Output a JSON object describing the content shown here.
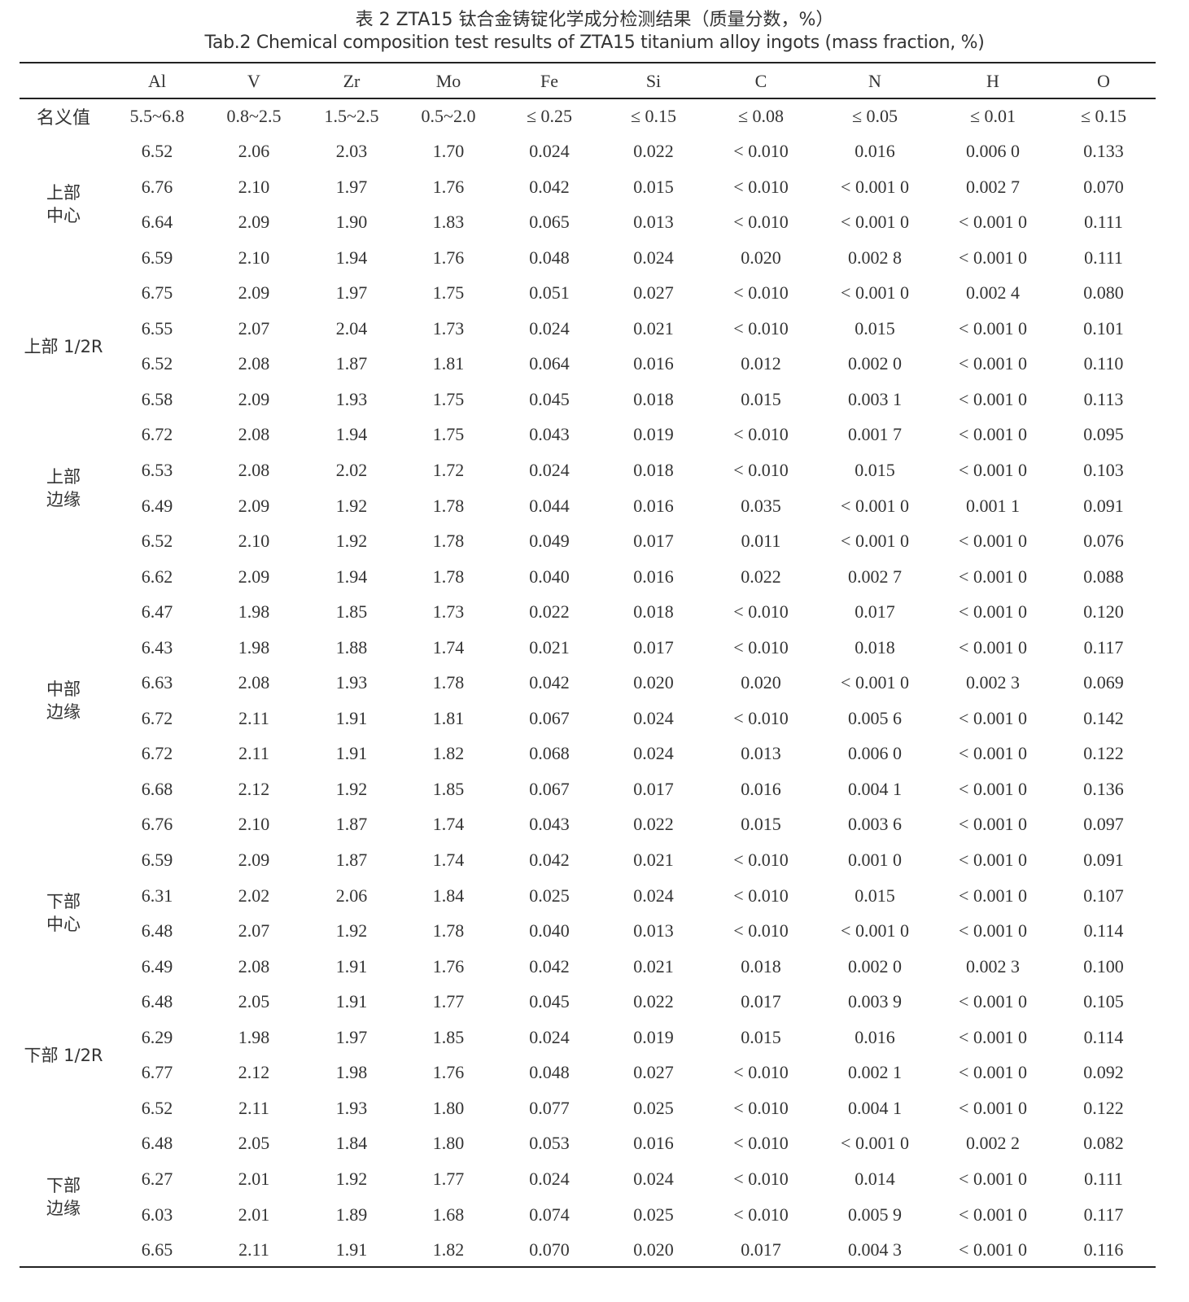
{
  "title_cn": "表 2 ZTA15 钛合金铸锭化学成分检测结果（质量分数，%）",
  "title_en": "Tab.2 Chemical composition test results of ZTA15 titanium alloy ingots (mass fraction, %)",
  "columns": [
    "Al",
    "V",
    "Zr",
    "Mo",
    "Fe",
    "Si",
    "C",
    "N",
    "H",
    "O"
  ],
  "nominal": {
    "label": "名义值",
    "values": [
      "5.5~6.8",
      "0.8~2.5",
      "1.5~2.5",
      "0.5~2.0",
      "≤ 0.25",
      "≤ 0.15",
      "≤ 0.08",
      "≤ 0.05",
      "≤ 0.01",
      "≤ 0.15"
    ]
  },
  "groups": [
    {
      "label": [
        "上部",
        "中心"
      ],
      "rows": [
        [
          "6.52",
          "2.06",
          "2.03",
          "1.70",
          "0.024",
          "0.022",
          "< 0.010",
          "0.016",
          "0.006 0",
          "0.133"
        ],
        [
          "6.76",
          "2.10",
          "1.97",
          "1.76",
          "0.042",
          "0.015",
          "< 0.010",
          "< 0.001 0",
          "0.002 7",
          "0.070"
        ],
        [
          "6.64",
          "2.09",
          "1.90",
          "1.83",
          "0.065",
          "0.013",
          "< 0.010",
          "< 0.001 0",
          "< 0.001 0",
          "0.111"
        ],
        [
          "6.59",
          "2.10",
          "1.94",
          "1.76",
          "0.048",
          "0.024",
          "0.020",
          "0.002 8",
          "< 0.001 0",
          "0.111"
        ]
      ]
    },
    {
      "label": [
        "上部 1/2R"
      ],
      "rows": [
        [
          "6.75",
          "2.09",
          "1.97",
          "1.75",
          "0.051",
          "0.027",
          "< 0.010",
          "< 0.001 0",
          "0.002 4",
          "0.080"
        ],
        [
          "6.55",
          "2.07",
          "2.04",
          "1.73",
          "0.024",
          "0.021",
          "< 0.010",
          "0.015",
          "< 0.001 0",
          "0.101"
        ],
        [
          "6.52",
          "2.08",
          "1.87",
          "1.81",
          "0.064",
          "0.016",
          "0.012",
          "0.002 0",
          "< 0.001 0",
          "0.110"
        ],
        [
          "6.58",
          "2.09",
          "1.93",
          "1.75",
          "0.045",
          "0.018",
          "0.015",
          "0.003 1",
          "< 0.001 0",
          "0.113"
        ]
      ]
    },
    {
      "label": [
        "上部",
        "边缘"
      ],
      "rows": [
        [
          "6.72",
          "2.08",
          "1.94",
          "1.75",
          "0.043",
          "0.019",
          "< 0.010",
          "0.001 7",
          "< 0.001 0",
          "0.095"
        ],
        [
          "6.53",
          "2.08",
          "2.02",
          "1.72",
          "0.024",
          "0.018",
          "< 0.010",
          "0.015",
          "< 0.001 0",
          "0.103"
        ],
        [
          "6.49",
          "2.09",
          "1.92",
          "1.78",
          "0.044",
          "0.016",
          "0.035",
          "< 0.001 0",
          "0.001 1",
          "0.091"
        ],
        [
          "6.52",
          "2.10",
          "1.92",
          "1.78",
          "0.049",
          "0.017",
          "0.011",
          "< 0.001 0",
          "< 0.001 0",
          "0.076"
        ]
      ]
    },
    {
      "label": [
        "中部",
        "边缘"
      ],
      "rows": [
        [
          "6.62",
          "2.09",
          "1.94",
          "1.78",
          "0.040",
          "0.016",
          "0.022",
          "0.002 7",
          "< 0.001 0",
          "0.088"
        ],
        [
          "6.47",
          "1.98",
          "1.85",
          "1.73",
          "0.022",
          "0.018",
          "< 0.010",
          "0.017",
          "< 0.001 0",
          "0.120"
        ],
        [
          "6.43",
          "1.98",
          "1.88",
          "1.74",
          "0.021",
          "0.017",
          "< 0.010",
          "0.018",
          "< 0.001 0",
          "0.117"
        ],
        [
          "6.63",
          "2.08",
          "1.93",
          "1.78",
          "0.042",
          "0.020",
          "0.020",
          "< 0.001 0",
          "0.002 3",
          "0.069"
        ],
        [
          "6.72",
          "2.11",
          "1.91",
          "1.81",
          "0.067",
          "0.024",
          "< 0.010",
          "0.005 6",
          "< 0.001 0",
          "0.142"
        ],
        [
          "6.72",
          "2.11",
          "1.91",
          "1.82",
          "0.068",
          "0.024",
          "0.013",
          "0.006 0",
          "< 0.001 0",
          "0.122"
        ],
        [
          "6.68",
          "2.12",
          "1.92",
          "1.85",
          "0.067",
          "0.017",
          "0.016",
          "0.004 1",
          "< 0.001 0",
          "0.136"
        ],
        [
          "6.76",
          "2.10",
          "1.87",
          "1.74",
          "0.043",
          "0.022",
          "0.015",
          "0.003 6",
          "< 0.001 0",
          "0.097"
        ]
      ]
    },
    {
      "label": [
        "下部",
        "中心"
      ],
      "rows": [
        [
          "6.59",
          "2.09",
          "1.87",
          "1.74",
          "0.042",
          "0.021",
          "< 0.010",
          "0.001 0",
          "< 0.001 0",
          "0.091"
        ],
        [
          "6.31",
          "2.02",
          "2.06",
          "1.84",
          "0.025",
          "0.024",
          "< 0.010",
          "0.015",
          "< 0.001 0",
          "0.107"
        ],
        [
          "6.48",
          "2.07",
          "1.92",
          "1.78",
          "0.040",
          "0.013",
          "< 0.010",
          "< 0.001 0",
          "< 0.001 0",
          "0.114"
        ],
        [
          "6.49",
          "2.08",
          "1.91",
          "1.76",
          "0.042",
          "0.021",
          "0.018",
          "0.002 0",
          "0.002 3",
          "0.100"
        ]
      ]
    },
    {
      "label": [
        "下部 1/2R"
      ],
      "rows": [
        [
          "6.48",
          "2.05",
          "1.91",
          "1.77",
          "0.045",
          "0.022",
          "0.017",
          "0.003 9",
          "< 0.001 0",
          "0.105"
        ],
        [
          "6.29",
          "1.98",
          "1.97",
          "1.85",
          "0.024",
          "0.019",
          "0.015",
          "0.016",
          "< 0.001 0",
          "0.114"
        ],
        [
          "6.77",
          "2.12",
          "1.98",
          "1.76",
          "0.048",
          "0.027",
          "< 0.010",
          "0.002 1",
          "< 0.001 0",
          "0.092"
        ],
        [
          "6.52",
          "2.11",
          "1.93",
          "1.80",
          "0.077",
          "0.025",
          "< 0.010",
          "0.004 1",
          "< 0.001 0",
          "0.122"
        ]
      ]
    },
    {
      "label": [
        "下部",
        "边缘"
      ],
      "rows": [
        [
          "6.48",
          "2.05",
          "1.84",
          "1.80",
          "0.053",
          "0.016",
          "< 0.010",
          "< 0.001 0",
          "0.002 2",
          "0.082"
        ],
        [
          "6.27",
          "2.01",
          "1.92",
          "1.77",
          "0.024",
          "0.024",
          "< 0.010",
          "0.014",
          "< 0.001 0",
          "0.111"
        ],
        [
          "6.03",
          "2.01",
          "1.89",
          "1.68",
          "0.074",
          "0.025",
          "< 0.010",
          "0.005 9",
          "< 0.001 0",
          "0.117"
        ],
        [
          "6.65",
          "2.11",
          "1.91",
          "1.82",
          "0.070",
          "0.020",
          "0.017",
          "0.004 3",
          "< 0.001 0",
          "0.116"
        ]
      ]
    }
  ]
}
